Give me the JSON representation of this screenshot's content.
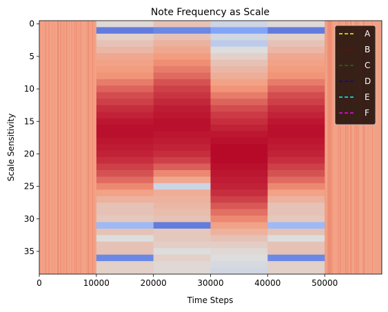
{
  "chart_data": {
    "type": "heatmap",
    "title": "Note Frequency as Scale",
    "xlabel": "Time Steps",
    "ylabel": "Scale Sensitivity",
    "xlim": [
      0,
      60000
    ],
    "ylim": [
      38.5,
      -0.5
    ],
    "xticks": [
      0,
      10000,
      20000,
      30000,
      40000,
      50000
    ],
    "yticks": [
      0,
      5,
      10,
      15,
      20,
      25,
      30,
      35
    ],
    "colormap": "coolwarm",
    "legend": {
      "placement": "top-right",
      "background": "#2e1a12",
      "entries": [
        {
          "name": "A",
          "color": "#ffff00",
          "style": "dashed"
        },
        {
          "name": "B",
          "color": "#8b0000",
          "style": "dashed"
        },
        {
          "name": "C",
          "color": "#008000",
          "style": "dashed"
        },
        {
          "name": "D",
          "color": "#0000cd",
          "style": "dashed"
        },
        {
          "name": "E",
          "color": "#00ffff",
          "style": "dashed"
        },
        {
          "name": "F",
          "color": "#ff00ff",
          "style": "dashed"
        }
      ]
    },
    "segments": [
      {
        "x0": 0,
        "x1": 10000,
        "profile": "noise"
      },
      {
        "x0": 10000,
        "x1": 20000,
        "profile": "A"
      },
      {
        "x0": 20000,
        "x1": 30000,
        "profile": "B"
      },
      {
        "x0": 30000,
        "x1": 40000,
        "profile": "C"
      },
      {
        "x0": 40000,
        "x1": 50000,
        "profile": "A"
      },
      {
        "x0": 50000,
        "x1": 60000,
        "profile": "noise"
      }
    ],
    "profiles": {
      "A": [
        0.52,
        0.12,
        0.55,
        0.6,
        0.64,
        0.7,
        0.72,
        0.74,
        0.76,
        0.8,
        0.84,
        0.88,
        0.9,
        0.93,
        0.95,
        0.97,
        0.98,
        0.98,
        0.97,
        0.96,
        0.95,
        0.93,
        0.9,
        0.87,
        0.83,
        0.78,
        0.72,
        0.66,
        0.6,
        0.6,
        0.58,
        0.3,
        0.6,
        0.5,
        0.6,
        0.6,
        0.15,
        0.55,
        0.55
      ],
      "B": [
        0.6,
        0.15,
        0.6,
        0.66,
        0.7,
        0.74,
        0.77,
        0.8,
        0.83,
        0.87,
        0.9,
        0.92,
        0.94,
        0.96,
        0.97,
        0.98,
        0.98,
        0.97,
        0.96,
        0.95,
        0.93,
        0.9,
        0.85,
        0.78,
        0.7,
        0.45,
        0.68,
        0.66,
        0.64,
        0.62,
        0.6,
        0.12,
        0.58,
        0.58,
        0.56,
        0.5,
        0.55,
        0.52,
        0.52
      ],
      "C": [
        0.45,
        0.22,
        0.46,
        0.4,
        0.5,
        0.55,
        0.6,
        0.64,
        0.68,
        0.72,
        0.76,
        0.8,
        0.84,
        0.88,
        0.91,
        0.93,
        0.95,
        0.97,
        0.98,
        0.99,
        0.99,
        0.99,
        0.98,
        0.97,
        0.96,
        0.95,
        0.93,
        0.9,
        0.86,
        0.82,
        0.78,
        0.72,
        0.66,
        0.6,
        0.56,
        0.52,
        0.5,
        0.48,
        0.46
      ]
    },
    "noise_level": 0.74
  }
}
